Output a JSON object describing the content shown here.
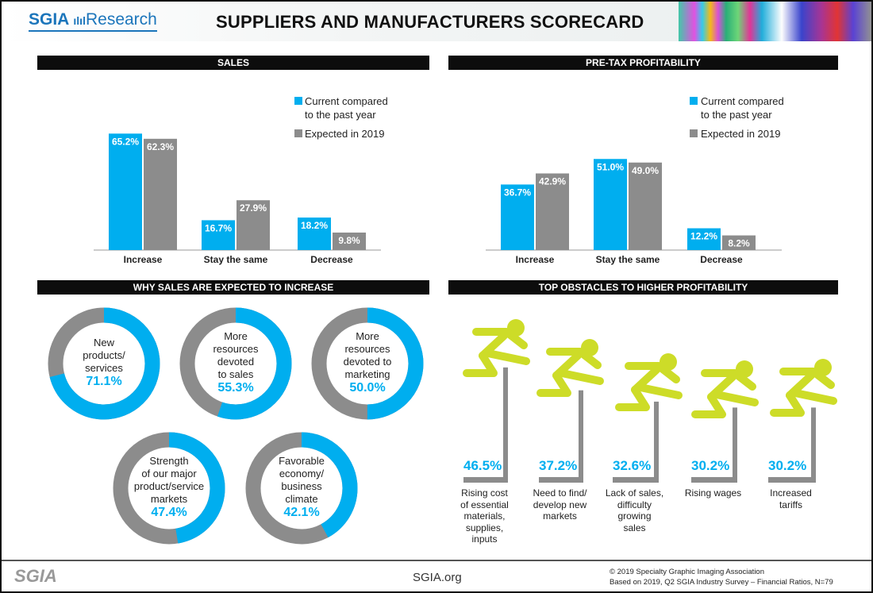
{
  "header": {
    "logo_brand": "SGIA",
    "logo_suffix": "Research",
    "title": "SUPPLIERS AND MANUFACTURERS  SCORECARD"
  },
  "colors": {
    "current": "#00aeef",
    "expected": "#8c8c8c",
    "runner": "#cddc28",
    "hurdle": "#8c8c8c",
    "section_bar": "#0d0d0d"
  },
  "sections": {
    "sales": "SALES",
    "profit": "PRE-TAX PROFITABILITY",
    "why": "WHY SALES ARE EXPECTED TO INCREASE",
    "obstacles": "TOP OBSTACLES TO HIGHER PROFITABILITY"
  },
  "legend": {
    "current_line1": "Current compared",
    "current_line2": "to the past year",
    "expected": "Expected in 2019"
  },
  "chart_data": [
    {
      "type": "bar",
      "id": "sales",
      "title": "SALES",
      "categories": [
        "Increase",
        "Stay the same",
        "Decrease"
      ],
      "series": [
        {
          "name": "Current compared to the past year",
          "values": [
            65.2,
            16.7,
            18.2
          ]
        },
        {
          "name": "Expected in 2019",
          "values": [
            62.3,
            27.9,
            9.8
          ]
        }
      ],
      "value_suffix": "%",
      "legend": "top-right",
      "grid": false
    },
    {
      "type": "bar",
      "id": "profit",
      "title": "PRE-TAX PROFITABILITY",
      "categories": [
        "Increase",
        "Stay the same",
        "Decrease"
      ],
      "series": [
        {
          "name": "Current compared to the past year",
          "values": [
            36.7,
            51.0,
            12.2
          ]
        },
        {
          "name": "Expected in 2019",
          "values": [
            42.9,
            49.0,
            8.2
          ]
        }
      ],
      "value_suffix": "%",
      "legend": "top-right",
      "grid": false
    },
    {
      "type": "pie",
      "id": "why",
      "title": "WHY SALES ARE EXPECTED TO INCREASE",
      "donut": true,
      "items": [
        {
          "label": "New products/ services",
          "lines": [
            "New",
            "products/",
            "services"
          ],
          "value": 71.1,
          "display": "71.1%"
        },
        {
          "label": "More resources devoted to sales",
          "lines": [
            "More",
            "resources",
            "devoted",
            "to sales"
          ],
          "value": 55.3,
          "display": "55.3%"
        },
        {
          "label": "More resources devoted to marketing",
          "lines": [
            "More",
            "resources",
            "devoted to",
            "marketing"
          ],
          "value": 50.0,
          "display": "50.0%"
        },
        {
          "label": "Strength of our major product/service markets",
          "lines": [
            "Strength",
            "of our major",
            "product/service",
            "markets"
          ],
          "value": 47.4,
          "display": "47.4%"
        },
        {
          "label": "Favorable economy/ business climate",
          "lines": [
            "Favorable",
            "economy/",
            "business",
            "climate"
          ],
          "value": 42.1,
          "display": "42.1%"
        }
      ]
    },
    {
      "type": "bar",
      "id": "obstacles",
      "title": "TOP OBSTACLES TO HIGHER PROFITABILITY",
      "items": [
        {
          "label": "Rising cost of essential materials, supplies, inputs",
          "lines": [
            "Rising cost",
            "of essential",
            "materials,",
            "supplies,",
            "inputs"
          ],
          "value": 46.5,
          "display": "46.5%"
        },
        {
          "label": "Need to find/ develop new markets",
          "lines": [
            "Need to find/",
            "develop new",
            "markets"
          ],
          "value": 37.2,
          "display": "37.2%"
        },
        {
          "label": "Lack of sales, difficulty growing sales",
          "lines": [
            "Lack of sales,",
            "difficulty",
            "growing",
            "sales"
          ],
          "value": 32.6,
          "display": "32.6%"
        },
        {
          "label": "Rising wages",
          "lines": [
            "Rising wages"
          ],
          "value": 30.2,
          "display": "30.2%"
        },
        {
          "label": "Increased tariffs",
          "lines": [
            "Increased",
            "tariffs"
          ],
          "value": 30.2,
          "display": "30.2%"
        }
      ]
    }
  ],
  "footer": {
    "logo": "SGIA",
    "site": "SGIA.org",
    "copyright": "© 2019 Specialty Graphic Imaging Association",
    "source": "Based on 2019, Q2 SGIA Industry Survey – Financial Ratios, N=79"
  }
}
